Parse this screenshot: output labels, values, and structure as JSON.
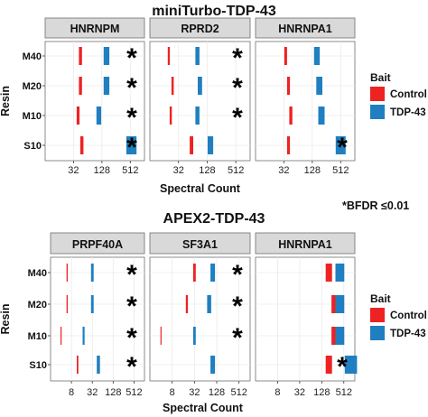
{
  "colors": {
    "control": "#ee2222",
    "tdp43": "#1f7fc0",
    "strip": "#d9d9d9",
    "grid": "#ebebeb",
    "frame": "#6f6f6f"
  },
  "footnote": "*BFDR ≤0.01",
  "chart_data": [
    {
      "type": "bar",
      "title": "miniTurbo-TDP-43",
      "xlabel": "Spectral Count",
      "ylabel": "Resin",
      "x_scale": "log2",
      "xlim": [
        8,
        1024
      ],
      "x_ticks": [
        32,
        128,
        512
      ],
      "x_tick_labels": [
        "32",
        "128",
        "512"
      ],
      "categories": [
        "M40",
        "M20",
        "M10",
        "S10"
      ],
      "legend": {
        "title": "Bait",
        "entries": [
          "Control",
          "TDP-43"
        ],
        "placement": "right"
      },
      "panels": [
        {
          "name": "HNRNPM",
          "series": [
            {
              "name": "Control",
              "values": [
                45,
                45,
                40,
                48
              ]
            },
            {
              "name": "TDP-43",
              "values": [
                160,
                160,
                110,
                540
              ]
            }
          ],
          "significant": [
            true,
            true,
            true,
            true
          ]
        },
        {
          "name": "RPRD2",
          "series": [
            {
              "name": "Control",
              "values": [
                20,
                24,
                22,
                60
              ]
            },
            {
              "name": "TDP-43",
              "values": [
                80,
                90,
                80,
                150
              ]
            }
          ],
          "significant": [
            true,
            true,
            true,
            false
          ]
        },
        {
          "name": "HNRNPA1",
          "series": [
            {
              "name": "Control",
              "values": [
                35,
                40,
                45,
                40
              ]
            },
            {
              "name": "TDP-43",
              "values": [
                160,
                180,
                200,
                512
              ]
            }
          ],
          "significant": [
            false,
            false,
            false,
            true
          ]
        }
      ]
    },
    {
      "type": "bar",
      "title": "APEX2-TDP-43",
      "xlabel": "Spectral Count",
      "ylabel": "Resin",
      "x_scale": "log2",
      "xlim": [
        2,
        1024
      ],
      "x_ticks": [
        8,
        32,
        128,
        512
      ],
      "x_tick_labels": [
        "8",
        "32",
        "128",
        "512"
      ],
      "categories": [
        "M40",
        "M20",
        "M10",
        "S10"
      ],
      "legend": {
        "title": "Bait",
        "entries": [
          "Control",
          "TDP-43"
        ],
        "placement": "right"
      },
      "panels": [
        {
          "name": "PRPF40A",
          "series": [
            {
              "name": "Control",
              "values": [
                6,
                6,
                4,
                12
              ]
            },
            {
              "name": "TDP-43",
              "values": [
                32,
                32,
                18,
                48
              ]
            }
          ],
          "significant": [
            true,
            true,
            true,
            true
          ]
        },
        {
          "name": "SF3A1",
          "series": [
            {
              "name": "Control",
              "values": [
                32,
                20,
                4,
                0
              ]
            },
            {
              "name": "TDP-43",
              "values": [
                100,
                80,
                32,
                100
              ]
            }
          ],
          "significant": [
            true,
            true,
            true,
            false
          ]
        },
        {
          "name": "HNRNPA1",
          "series": [
            {
              "name": "Control",
              "values": [
                200,
                300,
                300,
                200
              ]
            },
            {
              "name": "TDP-43",
              "values": [
                400,
                400,
                400,
                800
              ]
            }
          ],
          "significant": [
            false,
            false,
            false,
            true
          ]
        }
      ]
    }
  ]
}
